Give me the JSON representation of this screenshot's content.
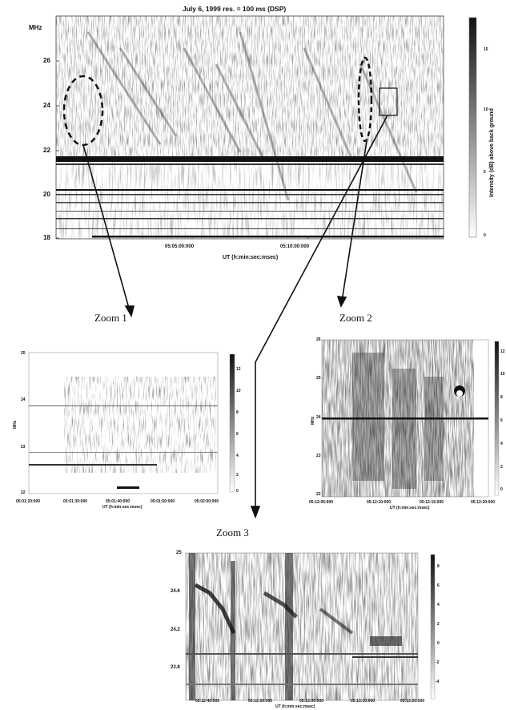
{
  "chart_data": [
    {
      "type": "heatmap",
      "name": "main",
      "title": "July 6, 1999  res. = 100 ms (DSP)",
      "ylabel": "MHz",
      "xlabel": "UT (h:min:sec:msec)",
      "y_ticks": [
        "26",
        "24",
        "22",
        "20",
        "18"
      ],
      "x_ticks": [
        "05:05:00:000",
        "05:10:00:000"
      ],
      "ylim": [
        18,
        27.5
      ],
      "colorbar": {
        "label": "Intensity (dB) above back ground",
        "ticks": [
          "15",
          "10",
          "5",
          "0"
        ],
        "range": [
          0,
          17
        ]
      },
      "annotations": [
        "dashed ellipse (Zoom 1)",
        "dashed ellipse (Zoom 2)",
        "rectangle (Zoom 3)"
      ]
    },
    {
      "type": "heatmap",
      "name": "zoom1",
      "label": "Zoom  1",
      "ylabel": "MHz",
      "xlabel": "UT (h:min:sec:msec)",
      "y_ticks": [
        "25",
        "24",
        "23",
        "22"
      ],
      "x_ticks": [
        "05:01:20:000",
        "05:01:30:000",
        "05:01:40:000",
        "05:01:50:000",
        "05:02:00:000"
      ],
      "ylim": [
        22,
        25
      ],
      "colorbar": {
        "ticks": [
          "12",
          "10",
          "8",
          "6",
          "4",
          "2",
          "0"
        ]
      }
    },
    {
      "type": "heatmap",
      "name": "zoom2",
      "label": "Zoom 2",
      "ylabel": "MHz",
      "xlabel": "UT (h:min:sec:msec)",
      "y_ticks": [
        "26",
        "25",
        "24",
        "23",
        "22"
      ],
      "x_ticks": [
        "05:12:05:000",
        "05:12:10:000",
        "05:12:15:000",
        "05:12:20:000"
      ],
      "ylim": [
        22,
        26
      ],
      "colorbar": {
        "ticks": [
          "12",
          "10",
          "8",
          "6",
          "4",
          "2",
          "0"
        ]
      }
    },
    {
      "type": "heatmap",
      "name": "zoom3",
      "label": "Zoom  3",
      "xlabel": "UT (h:min:sec:msec)",
      "y_ticks": [
        "25",
        "24.6",
        "24.2",
        "23.8"
      ],
      "x_ticks": [
        "05:12:40:000",
        "05:12:50:000",
        "05:13:00:000",
        "05:13:10:000",
        "05:13:20:000"
      ],
      "ylim": [
        23.5,
        25
      ],
      "colorbar": {
        "ticks": [
          "8",
          "6",
          "4",
          "2",
          "0",
          "-2",
          "-4"
        ]
      }
    }
  ],
  "colors": {
    "ink": "#111111",
    "background": "#ffffff"
  }
}
